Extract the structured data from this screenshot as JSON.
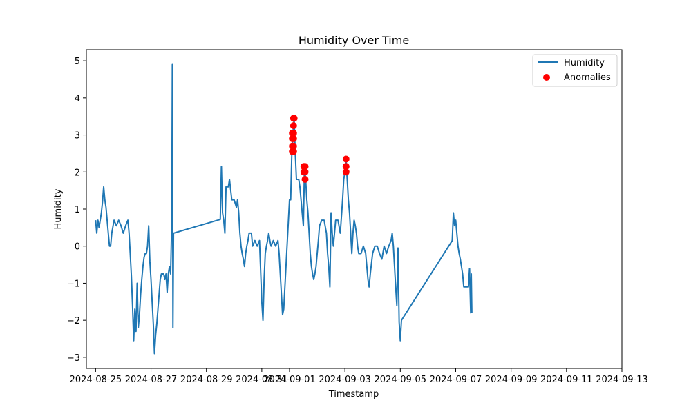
{
  "chart_data": {
    "type": "line",
    "title": "Humidity Over Time",
    "xlabel": "Timestamp",
    "ylabel": "Humidity",
    "x_axis": "date",
    "xlim": [
      "2024-08-24T16:00",
      "2024-09-13T00:00"
    ],
    "ylim": [
      -3.3,
      5.3
    ],
    "x_ticks": [
      "2024-08-25",
      "2024-08-27",
      "2024-08-29",
      "2024-08-31",
      "2024-09-01",
      "2024-09-03",
      "2024-09-05",
      "2024-09-07",
      "2024-09-09",
      "2024-09-11",
      "2024-09-13"
    ],
    "y_ticks": [
      -3,
      -2,
      -1,
      0,
      1,
      2,
      3,
      4,
      5
    ],
    "grid": false,
    "legend_position": "top-right",
    "colors": {
      "line": "#1f77b4",
      "anomaly": "#ff0000"
    },
    "series": [
      {
        "name": "Humidity",
        "kind": "line",
        "points": [
          [
            "2024-08-25T00:00",
            0.7
          ],
          [
            "2024-08-25T01:00",
            0.35
          ],
          [
            "2024-08-25T02:00",
            0.7
          ],
          [
            "2024-08-25T03:00",
            0.5
          ],
          [
            "2024-08-25T04:00",
            0.7
          ],
          [
            "2024-08-25T05:00",
            0.9
          ],
          [
            "2024-08-25T06:00",
            1.2
          ],
          [
            "2024-08-25T07:00",
            1.6
          ],
          [
            "2024-08-25T08:00",
            1.25
          ],
          [
            "2024-08-25T09:00",
            1.05
          ],
          [
            "2024-08-25T10:00",
            0.7
          ],
          [
            "2024-08-25T11:00",
            0.35
          ],
          [
            "2024-08-25T12:00",
            0.0
          ],
          [
            "2024-08-25T13:00",
            0.0
          ],
          [
            "2024-08-25T14:00",
            0.35
          ],
          [
            "2024-08-25T16:00",
            0.7
          ],
          [
            "2024-08-25T18:00",
            0.55
          ],
          [
            "2024-08-25T20:00",
            0.7
          ],
          [
            "2024-08-25T22:00",
            0.55
          ],
          [
            "2024-08-26T00:00",
            0.35
          ],
          [
            "2024-08-26T02:00",
            0.55
          ],
          [
            "2024-08-26T04:00",
            0.7
          ],
          [
            "2024-08-26T05:00",
            0.35
          ],
          [
            "2024-08-26T06:00",
            -0.2
          ],
          [
            "2024-08-26T07:00",
            -0.8
          ],
          [
            "2024-08-26T08:00",
            -1.6
          ],
          [
            "2024-08-26T09:00",
            -2.55
          ],
          [
            "2024-08-26T10:00",
            -1.7
          ],
          [
            "2024-08-26T11:00",
            -2.3
          ],
          [
            "2024-08-26T12:00",
            -1.0
          ],
          [
            "2024-08-26T13:00",
            -2.2
          ],
          [
            "2024-08-26T14:00",
            -1.85
          ],
          [
            "2024-08-26T15:00",
            -1.3
          ],
          [
            "2024-08-26T16:00",
            -0.9
          ],
          [
            "2024-08-26T17:00",
            -0.55
          ],
          [
            "2024-08-26T18:00",
            -0.3
          ],
          [
            "2024-08-26T19:00",
            -0.2
          ],
          [
            "2024-08-26T20:00",
            -0.2
          ],
          [
            "2024-08-26T21:00",
            0.0
          ],
          [
            "2024-08-26T22:00",
            0.55
          ],
          [
            "2024-08-26T23:00",
            -0.4
          ],
          [
            "2024-08-27T00:00",
            -0.9
          ],
          [
            "2024-08-27T01:00",
            -1.5
          ],
          [
            "2024-08-27T02:00",
            -2.1
          ],
          [
            "2024-08-27T03:00",
            -2.9
          ],
          [
            "2024-08-27T04:00",
            -2.4
          ],
          [
            "2024-08-27T05:00",
            -2.1
          ],
          [
            "2024-08-27T06:00",
            -1.7
          ],
          [
            "2024-08-27T07:00",
            -1.3
          ],
          [
            "2024-08-27T08:00",
            -0.9
          ],
          [
            "2024-08-27T09:00",
            -0.75
          ],
          [
            "2024-08-27T10:00",
            -0.75
          ],
          [
            "2024-08-27T11:00",
            -0.75
          ],
          [
            "2024-08-27T12:00",
            -0.9
          ],
          [
            "2024-08-27T13:00",
            -0.75
          ],
          [
            "2024-08-27T14:00",
            -1.25
          ],
          [
            "2024-08-27T15:00",
            -0.75
          ],
          [
            "2024-08-27T16:00",
            -0.55
          ],
          [
            "2024-08-27T17:00",
            -0.75
          ],
          [
            "2024-08-27T18:00",
            0.7
          ],
          [
            "2024-08-27T18:30",
            4.9
          ],
          [
            "2024-08-27T19:00",
            -2.2
          ],
          [
            "2024-08-27T19:30",
            0.35
          ],
          [
            "2024-08-29T12:00",
            0.72
          ],
          [
            "2024-08-29T13:00",
            2.15
          ],
          [
            "2024-08-29T14:00",
            0.9
          ],
          [
            "2024-08-29T15:00",
            0.7
          ],
          [
            "2024-08-29T16:00",
            0.35
          ],
          [
            "2024-08-29T17:00",
            1.6
          ],
          [
            "2024-08-29T19:00",
            1.6
          ],
          [
            "2024-08-29T20:00",
            1.8
          ],
          [
            "2024-08-29T22:00",
            1.25
          ],
          [
            "2024-08-30T00:00",
            1.25
          ],
          [
            "2024-08-30T02:00",
            1.05
          ],
          [
            "2024-08-30T03:00",
            1.25
          ],
          [
            "2024-08-30T04:00",
            0.9
          ],
          [
            "2024-08-30T05:00",
            0.35
          ],
          [
            "2024-08-30T06:00",
            0.0
          ],
          [
            "2024-08-30T07:00",
            -0.2
          ],
          [
            "2024-08-30T08:00",
            -0.35
          ],
          [
            "2024-08-30T09:00",
            -0.55
          ],
          [
            "2024-08-30T10:00",
            -0.2
          ],
          [
            "2024-08-30T11:00",
            0.0
          ],
          [
            "2024-08-30T12:00",
            0.15
          ],
          [
            "2024-08-30T13:00",
            0.35
          ],
          [
            "2024-08-30T15:00",
            0.35
          ],
          [
            "2024-08-30T16:00",
            0.0
          ],
          [
            "2024-08-30T18:00",
            0.15
          ],
          [
            "2024-08-30T20:00",
            0.0
          ],
          [
            "2024-08-30T22:00",
            0.15
          ],
          [
            "2024-08-31T00:00",
            -1.5
          ],
          [
            "2024-08-31T01:00",
            -2.0
          ],
          [
            "2024-08-31T02:00",
            -0.9
          ],
          [
            "2024-08-31T03:00",
            -0.2
          ],
          [
            "2024-08-31T04:00",
            0.0
          ],
          [
            "2024-08-31T05:00",
            0.15
          ],
          [
            "2024-08-31T06:00",
            0.35
          ],
          [
            "2024-08-31T07:00",
            0.15
          ],
          [
            "2024-08-31T08:00",
            0.0
          ],
          [
            "2024-08-31T10:00",
            0.15
          ],
          [
            "2024-08-31T12:00",
            0.0
          ],
          [
            "2024-08-31T14:00",
            0.15
          ],
          [
            "2024-08-31T15:00",
            -0.2
          ],
          [
            "2024-08-31T16:00",
            -0.75
          ],
          [
            "2024-08-31T17:00",
            -1.3
          ],
          [
            "2024-08-31T18:00",
            -1.85
          ],
          [
            "2024-08-31T19:00",
            -1.7
          ],
          [
            "2024-09-01T00:00",
            1.25
          ],
          [
            "2024-09-01T01:00",
            1.25
          ],
          [
            "2024-09-01T02:00",
            2.5
          ],
          [
            "2024-09-01T03:00",
            3.05
          ],
          [
            "2024-09-01T04:00",
            3.45
          ],
          [
            "2024-09-01T05:00",
            2.5
          ],
          [
            "2024-09-01T06:00",
            1.8
          ],
          [
            "2024-09-01T08:00",
            1.8
          ],
          [
            "2024-09-01T09:00",
            1.6
          ],
          [
            "2024-09-01T10:00",
            1.25
          ],
          [
            "2024-09-01T11:00",
            0.9
          ],
          [
            "2024-09-01T12:00",
            0.55
          ],
          [
            "2024-09-01T13:00",
            2.15
          ],
          [
            "2024-09-01T14:00",
            1.8
          ],
          [
            "2024-09-01T15:00",
            1.25
          ],
          [
            "2024-09-01T16:00",
            0.9
          ],
          [
            "2024-09-01T17:00",
            0.35
          ],
          [
            "2024-09-01T18:00",
            -0.2
          ],
          [
            "2024-09-01T19:00",
            -0.55
          ],
          [
            "2024-09-01T20:00",
            -0.75
          ],
          [
            "2024-09-01T21:00",
            -0.9
          ],
          [
            "2024-09-01T22:00",
            -0.75
          ],
          [
            "2024-09-01T23:00",
            -0.55
          ],
          [
            "2024-09-02T00:00",
            -0.2
          ],
          [
            "2024-09-02T01:00",
            0.15
          ],
          [
            "2024-09-02T02:00",
            0.55
          ],
          [
            "2024-09-02T04:00",
            0.7
          ],
          [
            "2024-09-02T06:00",
            0.7
          ],
          [
            "2024-09-02T08:00",
            0.35
          ],
          [
            "2024-09-02T09:00",
            -0.2
          ],
          [
            "2024-09-02T10:00",
            -0.55
          ],
          [
            "2024-09-02T11:00",
            -1.1
          ],
          [
            "2024-09-02T12:00",
            0.9
          ],
          [
            "2024-09-02T13:00",
            0.35
          ],
          [
            "2024-09-02T14:00",
            0.0
          ],
          [
            "2024-09-02T15:00",
            0.35
          ],
          [
            "2024-09-02T16:00",
            0.7
          ],
          [
            "2024-09-02T18:00",
            0.7
          ],
          [
            "2024-09-02T20:00",
            0.35
          ],
          [
            "2024-09-02T22:00",
            1.25
          ],
          [
            "2024-09-02T23:00",
            1.8
          ],
          [
            "2024-09-03T00:00",
            2.0
          ],
          [
            "2024-09-03T01:00",
            2.35
          ],
          [
            "2024-09-03T02:00",
            1.8
          ],
          [
            "2024-09-03T03:00",
            1.25
          ],
          [
            "2024-09-03T04:00",
            0.9
          ],
          [
            "2024-09-03T05:00",
            0.35
          ],
          [
            "2024-09-03T06:00",
            -0.2
          ],
          [
            "2024-09-03T07:00",
            0.35
          ],
          [
            "2024-09-03T08:00",
            0.7
          ],
          [
            "2024-09-03T09:00",
            0.55
          ],
          [
            "2024-09-03T10:00",
            0.35
          ],
          [
            "2024-09-03T11:00",
            0.0
          ],
          [
            "2024-09-03T12:00",
            -0.2
          ],
          [
            "2024-09-03T14:00",
            -0.2
          ],
          [
            "2024-09-03T16:00",
            0.0
          ],
          [
            "2024-09-03T18:00",
            -0.2
          ],
          [
            "2024-09-03T19:00",
            -0.55
          ],
          [
            "2024-09-03T20:00",
            -0.9
          ],
          [
            "2024-09-03T21:00",
            -1.1
          ],
          [
            "2024-09-03T22:00",
            -0.75
          ],
          [
            "2024-09-04T00:00",
            -0.2
          ],
          [
            "2024-09-04T02:00",
            0.0
          ],
          [
            "2024-09-04T04:00",
            0.0
          ],
          [
            "2024-09-04T06:00",
            -0.2
          ],
          [
            "2024-09-04T08:00",
            -0.35
          ],
          [
            "2024-09-04T10:00",
            0.0
          ],
          [
            "2024-09-04T12:00",
            -0.2
          ],
          [
            "2024-09-04T14:00",
            0.0
          ],
          [
            "2024-09-04T16:00",
            0.15
          ],
          [
            "2024-09-04T17:00",
            0.35
          ],
          [
            "2024-09-04T18:00",
            0.0
          ],
          [
            "2024-09-04T19:00",
            -0.55
          ],
          [
            "2024-09-04T20:00",
            -1.1
          ],
          [
            "2024-09-04T21:00",
            -1.6
          ],
          [
            "2024-09-04T22:00",
            -0.05
          ],
          [
            "2024-09-04T23:00",
            -2.05
          ],
          [
            "2024-09-05T00:00",
            -2.55
          ],
          [
            "2024-09-05T01:00",
            -2.0
          ],
          [
            "2024-09-06T21:00",
            0.15
          ],
          [
            "2024-09-06T22:00",
            0.9
          ],
          [
            "2024-09-06T23:00",
            0.55
          ],
          [
            "2024-09-07T00:00",
            0.7
          ],
          [
            "2024-09-07T01:00",
            0.35
          ],
          [
            "2024-09-07T02:00",
            0.0
          ],
          [
            "2024-09-07T03:00",
            -0.2
          ],
          [
            "2024-09-07T04:00",
            -0.35
          ],
          [
            "2024-09-07T05:00",
            -0.55
          ],
          [
            "2024-09-07T06:00",
            -0.75
          ],
          [
            "2024-09-07T07:00",
            -1.1
          ],
          [
            "2024-09-07T09:00",
            -1.1
          ],
          [
            "2024-09-07T11:00",
            -1.1
          ],
          [
            "2024-09-07T12:00",
            -0.6
          ],
          [
            "2024-09-07T13:00",
            -1.8
          ],
          [
            "2024-09-07T13:30",
            -0.75
          ],
          [
            "2024-09-07T14:00",
            -1.8
          ]
        ]
      },
      {
        "name": "Anomalies",
        "kind": "scatter",
        "points": [
          [
            "2024-09-01T02:30",
            2.55
          ],
          [
            "2024-09-01T02:30",
            2.7
          ],
          [
            "2024-09-01T02:30",
            2.9
          ],
          [
            "2024-09-01T02:30",
            3.05
          ],
          [
            "2024-09-01T03:30",
            2.55
          ],
          [
            "2024-09-01T03:30",
            2.7
          ],
          [
            "2024-09-01T03:30",
            2.9
          ],
          [
            "2024-09-01T03:30",
            3.05
          ],
          [
            "2024-09-01T03:30",
            3.25
          ],
          [
            "2024-09-01T03:30",
            3.45
          ],
          [
            "2024-09-01T04:00",
            3.45
          ],
          [
            "2024-09-01T12:30",
            2.15
          ],
          [
            "2024-09-01T12:30",
            2.0
          ],
          [
            "2024-09-01T13:30",
            2.15
          ],
          [
            "2024-09-01T13:30",
            2.0
          ],
          [
            "2024-09-01T13:30",
            1.8
          ],
          [
            "2024-09-03T01:00",
            2.35
          ],
          [
            "2024-09-03T01:00",
            2.15
          ],
          [
            "2024-09-03T01:00",
            2.0
          ]
        ]
      }
    ]
  }
}
